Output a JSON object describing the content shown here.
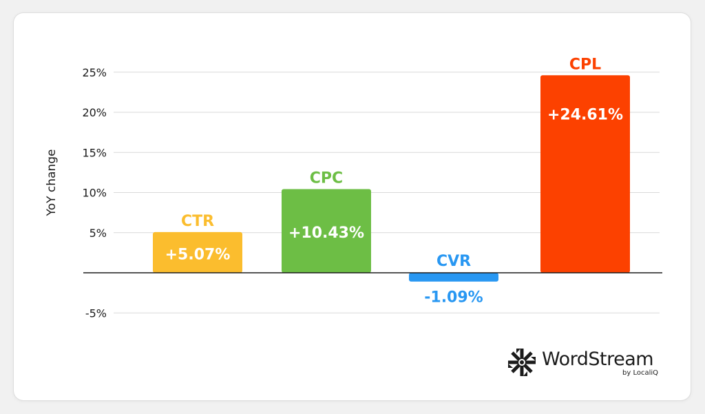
{
  "chart_data": {
    "type": "bar",
    "ylabel": "YoY change",
    "yticks": [
      "25%",
      "20%",
      "15%",
      "10%",
      "5%",
      "-5%"
    ],
    "ytick_values": [
      25,
      20,
      15,
      10,
      5,
      -5
    ],
    "ylim": [
      -5,
      25
    ],
    "grid": true,
    "categories": [
      "CTR",
      "CPC",
      "CVR",
      "CPL"
    ],
    "values": [
      5.07,
      10.43,
      -1.09,
      24.61
    ],
    "value_labels": [
      "+5.07%",
      "+10.43%",
      "-1.09%",
      "+24.61%"
    ],
    "colors": [
      "#fbbd2e",
      "#6dbe45",
      "#2897f2",
      "#fc4100"
    ]
  },
  "branding": {
    "name": "WordStream",
    "sub": "by LocaliQ"
  }
}
